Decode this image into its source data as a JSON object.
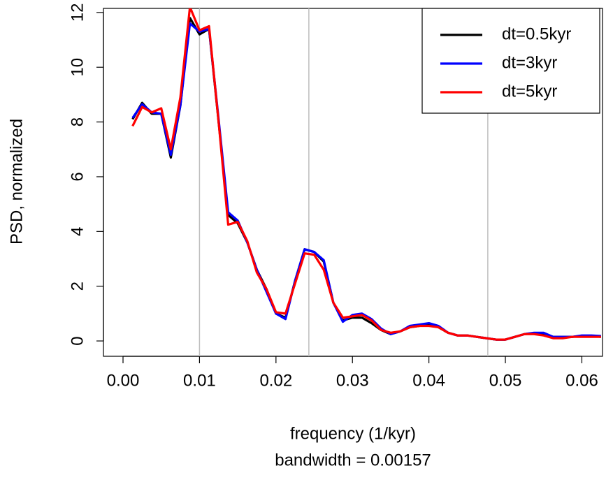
{
  "chart_data": {
    "type": "line",
    "xlabel": "frequency (1/kyr)",
    "subtitle": "bandwidth = 0.00157",
    "ylabel": "PSD, normalized",
    "x": [
      0.00125,
      0.0025,
      0.00375,
      0.005,
      0.00625,
      0.0075,
      0.00875,
      0.01,
      0.01125,
      0.0125,
      0.01375,
      0.015,
      0.01625,
      0.0175,
      0.01875,
      0.02,
      0.02125,
      0.0225,
      0.02375,
      0.025,
      0.02625,
      0.0275,
      0.02875,
      0.03,
      0.03125,
      0.0325,
      0.03375,
      0.035,
      0.03625,
      0.0375,
      0.03875,
      0.04,
      0.04125,
      0.0425,
      0.04375,
      0.045,
      0.04625,
      0.0475,
      0.04875,
      0.05,
      0.05125,
      0.0525,
      0.05375,
      0.055,
      0.05625,
      0.0575,
      0.05875,
      0.06,
      0.06125,
      0.0625
    ],
    "series": [
      {
        "name": "dt=0.5kyr",
        "color": "#000000",
        "values": [
          8.1,
          8.7,
          8.3,
          8.3,
          6.7,
          8.6,
          11.8,
          11.2,
          11.4,
          8.0,
          4.6,
          4.3,
          3.6,
          2.6,
          1.9,
          1.0,
          0.85,
          2.2,
          3.35,
          3.25,
          2.9,
          1.4,
          0.75,
          0.85,
          0.85,
          0.65,
          0.4,
          0.25,
          0.35,
          0.5,
          0.55,
          0.6,
          0.5,
          0.3,
          0.2,
          0.2,
          0.15,
          0.1,
          0.05,
          0.05,
          0.15,
          0.25,
          0.28,
          0.25,
          0.15,
          0.15,
          0.15,
          0.18,
          0.18,
          0.15
        ]
      },
      {
        "name": "dt=3kyr",
        "color": "#0000ff",
        "values": [
          8.15,
          8.65,
          8.35,
          8.3,
          6.8,
          8.6,
          11.6,
          11.3,
          11.4,
          8.1,
          4.7,
          4.4,
          3.6,
          2.6,
          1.8,
          1.0,
          0.8,
          2.2,
          3.35,
          3.25,
          2.95,
          1.4,
          0.7,
          0.95,
          1.0,
          0.8,
          0.45,
          0.25,
          0.35,
          0.55,
          0.6,
          0.65,
          0.55,
          0.3,
          0.2,
          0.2,
          0.15,
          0.1,
          0.05,
          0.05,
          0.15,
          0.25,
          0.3,
          0.3,
          0.15,
          0.15,
          0.15,
          0.2,
          0.2,
          0.18
        ]
      },
      {
        "name": "dt=5kyr",
        "color": "#ff0000",
        "values": [
          7.85,
          8.55,
          8.35,
          8.5,
          7.0,
          8.9,
          12.2,
          11.35,
          11.5,
          8.0,
          4.25,
          4.35,
          3.65,
          2.5,
          1.9,
          1.05,
          1.0,
          2.1,
          3.2,
          3.15,
          2.6,
          1.4,
          0.85,
          0.9,
          0.95,
          0.75,
          0.4,
          0.3,
          0.35,
          0.5,
          0.55,
          0.55,
          0.5,
          0.3,
          0.2,
          0.2,
          0.15,
          0.1,
          0.05,
          0.05,
          0.15,
          0.25,
          0.25,
          0.2,
          0.1,
          0.1,
          0.15,
          0.15,
          0.15,
          0.15
        ]
      }
    ],
    "vlines": [
      0.01,
      0.0243,
      0.0477
    ],
    "vline_color": "#bebebe",
    "xlim": [
      -0.00256,
      0.0627
    ],
    "ylim": [
      -0.56,
      12.15
    ],
    "xticks": [
      {
        "value": 0,
        "label": "0.00"
      },
      0.01,
      0.02,
      0.03,
      0.04,
      0.05,
      0.06
    ],
    "yticks": [
      0,
      2,
      4,
      6,
      8,
      10,
      12
    ],
    "legend": "topright"
  }
}
